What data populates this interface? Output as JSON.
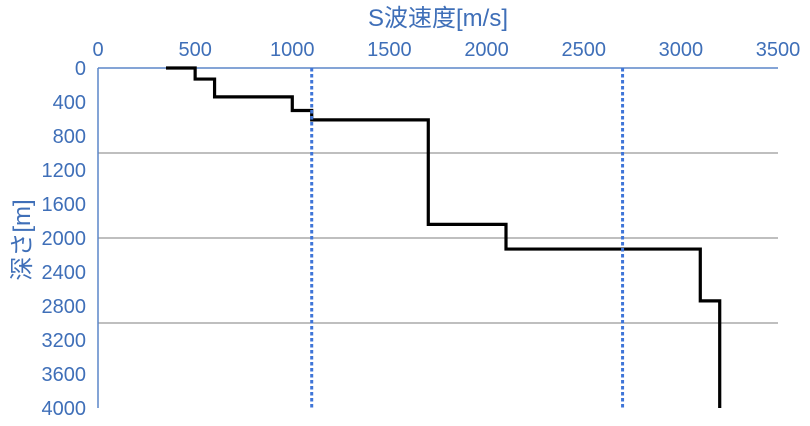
{
  "chart_data": {
    "type": "line",
    "title": "",
    "xlabel": "S波速度[m/s]",
    "ylabel": "深さ[m]",
    "x_axis_position": "top",
    "y_inverted": true,
    "xlim": [
      0,
      3500
    ],
    "ylim": [
      0,
      4000
    ],
    "xticks": [
      "0",
      "500",
      "1000",
      "1500",
      "2000",
      "2500",
      "3000",
      "3500"
    ],
    "yticks": [
      "0",
      "400",
      "800",
      "1200",
      "1600",
      "2000",
      "2400",
      "2800",
      "3200",
      "3600",
      "4000"
    ],
    "grid_y_major": [
      1000,
      2000,
      3000
    ],
    "grid": true,
    "legend": "none",
    "series": [
      {
        "color": "#000000",
        "style": "solid",
        "points": [
          [
            350,
            0
          ],
          [
            500,
            0
          ],
          [
            500,
            130
          ],
          [
            600,
            130
          ],
          [
            600,
            340
          ],
          [
            1000,
            340
          ],
          [
            1000,
            500
          ],
          [
            1100,
            500
          ],
          [
            1100,
            610
          ],
          [
            1700,
            610
          ],
          [
            1700,
            1840
          ],
          [
            2100,
            1840
          ],
          [
            2100,
            2130
          ],
          [
            3100,
            2130
          ],
          [
            3100,
            2740
          ],
          [
            3200,
            2740
          ],
          [
            3200,
            4000
          ]
        ]
      },
      {
        "color": "#3f75d8",
        "style": "dotted",
        "points": [
          [
            1100,
            0
          ],
          [
            1100,
            4000
          ]
        ]
      },
      {
        "color": "#3f75d8",
        "style": "dotted",
        "points": [
          [
            2700,
            0
          ],
          [
            2700,
            4000
          ]
        ]
      }
    ],
    "colors": {
      "axis": "#5b86c9",
      "tick_text": "#3f6fb8",
      "grid": "#7f7f7f"
    }
  }
}
